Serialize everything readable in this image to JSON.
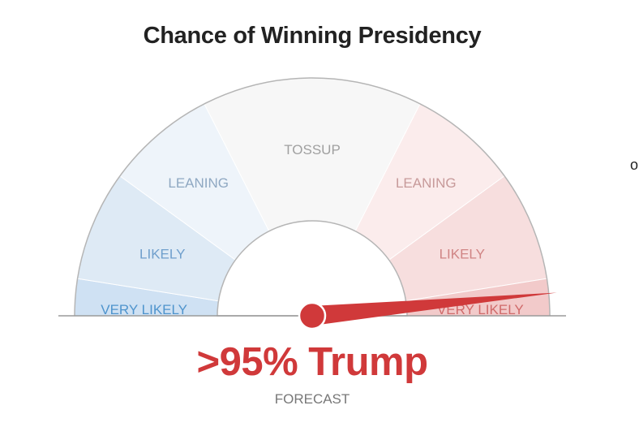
{
  "chart_data": {
    "type": "gauge",
    "title": "Chance of Winning Presidency",
    "zones": [
      {
        "label": "VERY LIKELY",
        "side": "left",
        "from": 0,
        "to": 5,
        "color": "#cfe1f3",
        "text_color": "#4f94cd"
      },
      {
        "label": "LIKELY",
        "side": "left",
        "from": 5,
        "to": 20,
        "color": "#deeaf5",
        "text_color": "#6f9fcc"
      },
      {
        "label": "LEANING",
        "side": "left",
        "from": 20,
        "to": 35,
        "color": "#eef4fa",
        "text_color": "#8fa8c2"
      },
      {
        "label": "TOSSUP",
        "side": "center",
        "from": 35,
        "to": 65,
        "color": "#f7f7f7",
        "text_color": "#a0a0a0"
      },
      {
        "label": "LEANING",
        "side": "right",
        "from": 65,
        "to": 80,
        "color": "#fbecec",
        "text_color": "#c79a9a"
      },
      {
        "label": "LIKELY",
        "side": "right",
        "from": 80,
        "to": 95,
        "color": "#f7dede",
        "text_color": "#d08484"
      },
      {
        "label": "VERY LIKELY",
        "side": "right",
        "from": 95,
        "to": 100,
        "color": "#f2caca",
        "text_color": "#d06a6a"
      }
    ],
    "needle_value": 97,
    "needle_color": "#d0393a",
    "result_text": ">95% Trump",
    "subtitle": "FORECAST"
  },
  "edge_text": "o"
}
